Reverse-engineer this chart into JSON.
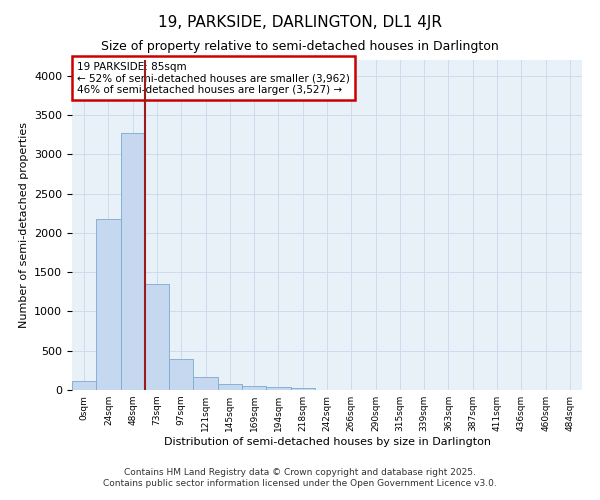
{
  "title": "19, PARKSIDE, DARLINGTON, DL1 4JR",
  "subtitle": "Size of property relative to semi-detached houses in Darlington",
  "xlabel": "Distribution of semi-detached houses by size in Darlington",
  "ylabel": "Number of semi-detached properties",
  "bar_labels": [
    "0sqm",
    "24sqm",
    "48sqm",
    "73sqm",
    "97sqm",
    "121sqm",
    "145sqm",
    "169sqm",
    "194sqm",
    "218sqm",
    "242sqm",
    "266sqm",
    "290sqm",
    "315sqm",
    "339sqm",
    "363sqm",
    "387sqm",
    "411sqm",
    "436sqm",
    "460sqm",
    "484sqm"
  ],
  "bar_values": [
    120,
    2175,
    3270,
    1355,
    390,
    165,
    80,
    55,
    35,
    20,
    0,
    0,
    0,
    0,
    0,
    0,
    0,
    0,
    0,
    0,
    0
  ],
  "bar_color": "#c5d8f0",
  "bar_edge_color": "#7aaad0",
  "grid_color": "#c8d8ea",
  "background_color": "#e8f0f8",
  "vline_x": 3.0,
  "vline_color": "#9b1b1b",
  "annotation_title": "19 PARKSIDE: 85sqm",
  "annotation_line1": "← 52% of semi-detached houses are smaller (3,962)",
  "annotation_line2": "46% of semi-detached houses are larger (3,527) →",
  "annotation_box_color": "#cc0000",
  "ylim": [
    0,
    4000
  ],
  "yticks": [
    0,
    500,
    1000,
    1500,
    2000,
    2500,
    3000,
    3500,
    4000
  ],
  "footer_line1": "Contains HM Land Registry data © Crown copyright and database right 2025.",
  "footer_line2": "Contains public sector information licensed under the Open Government Licence v3.0."
}
